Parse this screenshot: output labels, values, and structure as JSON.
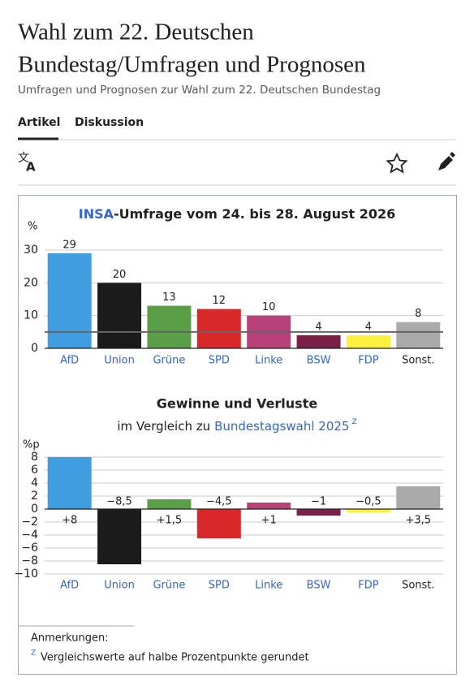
{
  "header": {
    "title_lines": [
      "Wahl zum 22. Deutschen",
      "Bundestag/Umfragen und Prognosen"
    ],
    "subtitle": "Umfragen und Prognosen zur Wahl zum 22. Deutschen Bundestag"
  },
  "tabs": [
    "Artikel",
    "Diskussion"
  ],
  "chart_data": [
    {
      "type": "bar",
      "title_link": "INSA",
      "title": "-Umfrage vom 24. bis 28. August 2026",
      "y_label": "%",
      "categories": [
        "AfD",
        "Union",
        "Grüne",
        "SPD",
        "Linke",
        "BSW",
        "FDP",
        "Sonst."
      ],
      "values": [
        29,
        20,
        13,
        12,
        10,
        4,
        4,
        8
      ],
      "colors": [
        "#3f9de0",
        "#1b1b1b",
        "#5a9e48",
        "#d9282a",
        "#b8417a",
        "#7a2048",
        "#ffef40",
        "#aaaaaa"
      ],
      "threshold": 5,
      "ylim": [
        0,
        30
      ],
      "yticks": [
        0,
        10,
        20,
        30
      ],
      "grid": true
    },
    {
      "type": "bar",
      "title": "Gewinne und Verluste",
      "subtitle": "im Vergleich zu",
      "subtitle_link": "Bundestagswahl 2025",
      "subtitle_note": "Z",
      "y_label": "%p",
      "categories": [
        "AfD",
        "Union",
        "Grüne",
        "SPD",
        "Linke",
        "BSW",
        "FDP",
        "Sonst."
      ],
      "values": [
        8,
        -8.5,
        1.5,
        -4.5,
        1,
        -1,
        -0.5,
        3.5
      ],
      "value_labels": [
        "+8",
        "−8,5",
        "+1,5",
        "−4,5",
        "+1",
        "−1",
        "−0,5",
        "+3,5"
      ],
      "colors": [
        "#3f9de0",
        "#1b1b1b",
        "#5a9e48",
        "#d9282a",
        "#b8417a",
        "#7a2048",
        "#ffef40",
        "#aaaaaa"
      ],
      "ylim": [
        -10,
        8
      ],
      "yticks": [
        8,
        6,
        4,
        2,
        0,
        {
          "value": -2,
          "label": "−2"
        },
        {
          "value": -4,
          "label": "−4"
        },
        {
          "value": -6,
          "label": "−6"
        },
        {
          "value": -8,
          "label": "−8"
        },
        {
          "value": -10,
          "label": "−10"
        }
      ],
      "grid": true
    }
  ],
  "notes": {
    "heading": "Anmerkungen:",
    "marker": "Z",
    "text": "Vergleichswerte auf halbe Prozentpunkte gerundet"
  }
}
